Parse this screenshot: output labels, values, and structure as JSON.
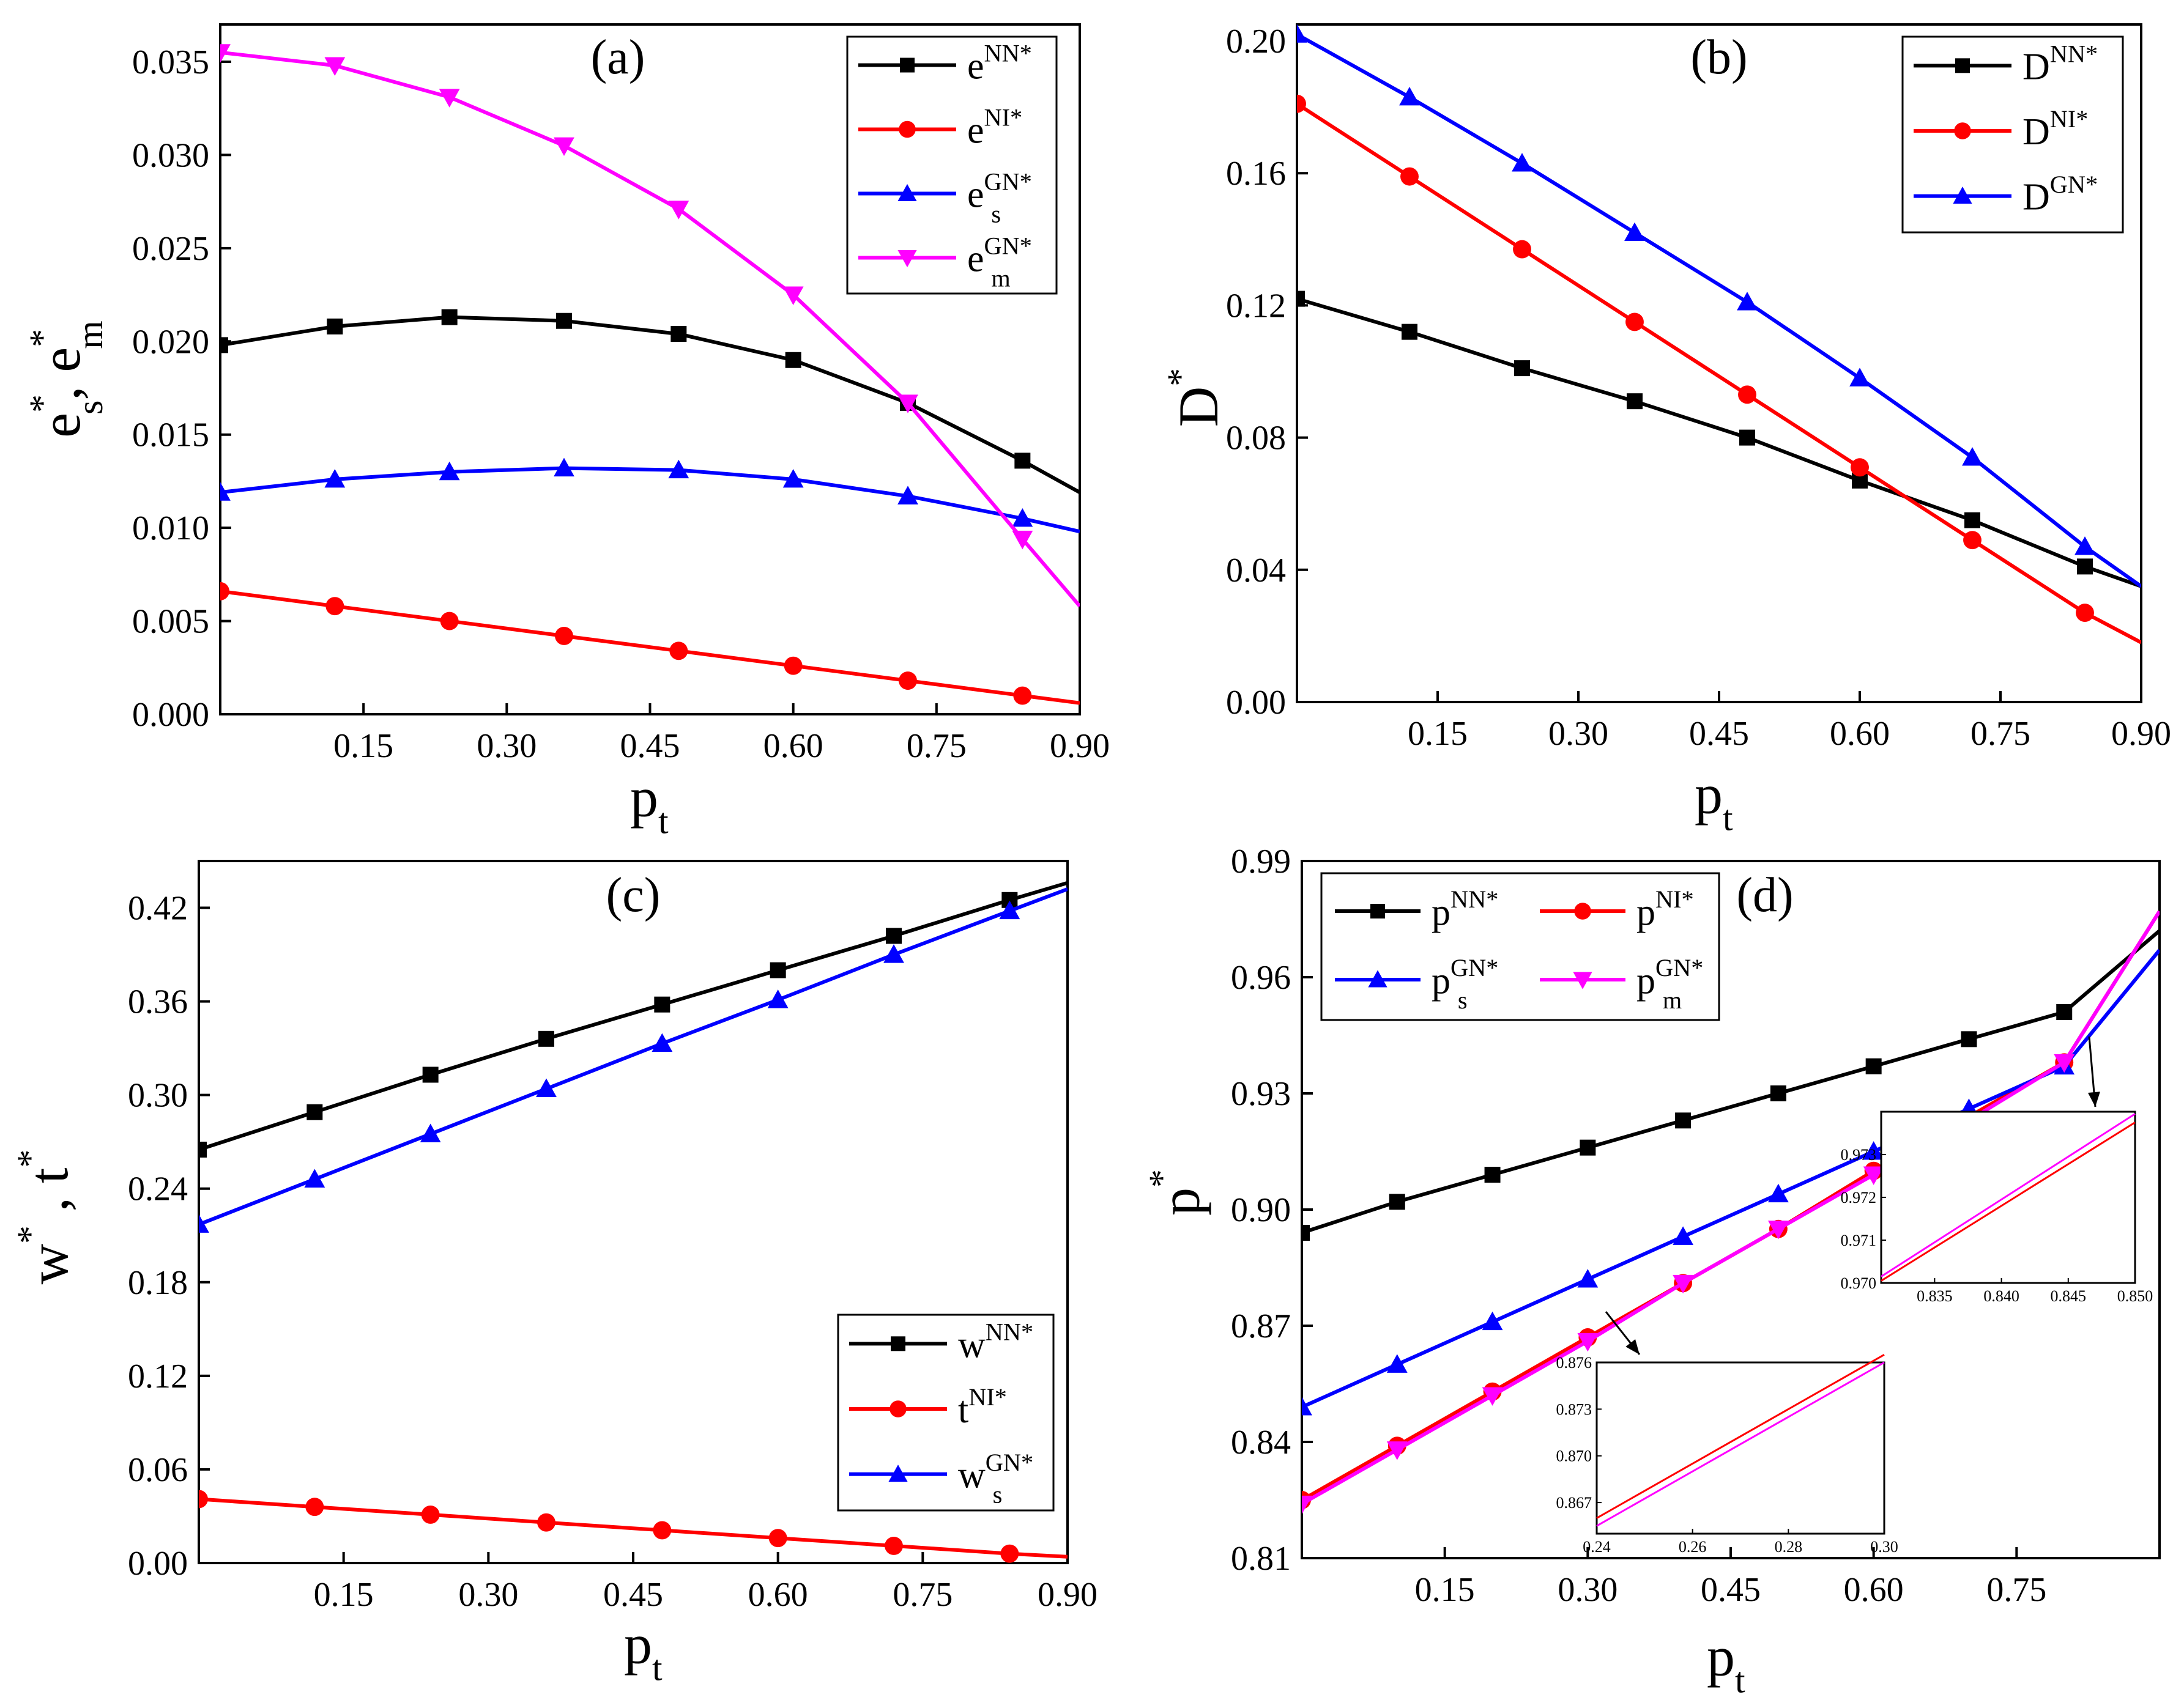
{
  "chart_data": [
    {
      "id": "a",
      "type": "line",
      "panel_label": "(a)",
      "xlabel": {
        "base": "p",
        "sub": "t"
      },
      "ylabel": [
        {
          "base": "e",
          "sup": "*",
          "sub": "s"
        },
        {
          "text": ", "
        },
        {
          "base": "e",
          "sup": "*",
          "sub": "m"
        }
      ],
      "xlim": [
        0,
        0.9
      ],
      "ylim": [
        0,
        0.037
      ],
      "xticks": [
        0.15,
        0.3,
        0.45,
        0.6,
        0.75,
        0.9
      ],
      "xtick_labels": [
        "0.15",
        "0.30",
        "0.45",
        "0.60",
        "0.75",
        "0.90"
      ],
      "yticks": [
        0.0,
        0.005,
        0.01,
        0.015,
        0.02,
        0.025,
        0.03,
        0.035
      ],
      "ytick_labels": [
        "0.000",
        "0.005",
        "0.010",
        "0.015",
        "0.020",
        "0.025",
        "0.030",
        "0.035"
      ],
      "legend_position": "top-right",
      "series": [
        {
          "legend": {
            "base": "e",
            "sup": "NN*",
            "sub": ""
          },
          "color": "#000000",
          "marker": "square",
          "x": [
            0,
            0.12,
            0.24,
            0.36,
            0.48,
            0.6,
            0.72,
            0.84,
            0.9
          ],
          "y": [
            0.0198,
            0.0208,
            0.0213,
            0.0211,
            0.0204,
            0.019,
            0.0167,
            0.0136,
            0.0119
          ],
          "marker_x": [
            0,
            0.12,
            0.24,
            0.36,
            0.48,
            0.6,
            0.72,
            0.84
          ]
        },
        {
          "legend": {
            "base": "e",
            "sup": "NI*",
            "sub": ""
          },
          "color": "#ff0000",
          "marker": "circle",
          "x": [
            0,
            0.12,
            0.24,
            0.36,
            0.48,
            0.6,
            0.72,
            0.84,
            0.9
          ],
          "y": [
            0.0066,
            0.0058,
            0.005,
            0.0042,
            0.0034,
            0.0026,
            0.0018,
            0.001,
            0.0006
          ],
          "marker_x": [
            0,
            0.12,
            0.24,
            0.36,
            0.48,
            0.6,
            0.72,
            0.84
          ]
        },
        {
          "legend": {
            "base": "e",
            "sup": "GN*",
            "sub": "s"
          },
          "color": "#0000ff",
          "marker": "triangle-up",
          "x": [
            0,
            0.12,
            0.24,
            0.36,
            0.48,
            0.6,
            0.72,
            0.84,
            0.9
          ],
          "y": [
            0.0119,
            0.0126,
            0.013,
            0.0132,
            0.0131,
            0.0126,
            0.0117,
            0.0105,
            0.0098
          ],
          "marker_x": [
            0,
            0.12,
            0.24,
            0.36,
            0.48,
            0.6,
            0.72,
            0.84
          ]
        },
        {
          "legend": {
            "base": "e",
            "sup": "GN*",
            "sub": "m"
          },
          "color": "#ff00ff",
          "marker": "triangle-down",
          "x": [
            0,
            0.12,
            0.24,
            0.36,
            0.48,
            0.6,
            0.72,
            0.84,
            0.9
          ],
          "y": [
            0.0355,
            0.0348,
            0.0331,
            0.0305,
            0.0271,
            0.0225,
            0.0167,
            0.0094,
            0.0058
          ],
          "marker_x": [
            0,
            0.12,
            0.24,
            0.36,
            0.48,
            0.6,
            0.72,
            0.84
          ]
        }
      ]
    },
    {
      "id": "b",
      "type": "line",
      "panel_label": "(b)",
      "xlabel": {
        "base": "p",
        "sub": "t"
      },
      "ylabel": [
        {
          "base": "D",
          "sup": "*",
          "sub": ""
        }
      ],
      "xlim": [
        0,
        0.9
      ],
      "ylim": [
        0,
        0.205
      ],
      "xticks": [
        0.15,
        0.3,
        0.45,
        0.6,
        0.75,
        0.9
      ],
      "xtick_labels": [
        "0.15",
        "0.30",
        "0.45",
        "0.60",
        "0.75",
        "0.90"
      ],
      "yticks": [
        0.0,
        0.04,
        0.08,
        0.12,
        0.16,
        0.2
      ],
      "ytick_labels": [
        "0.00",
        "0.04",
        "0.08",
        "0.12",
        "0.16",
        "0.20"
      ],
      "legend_position": "top-right",
      "series": [
        {
          "legend": {
            "base": "D",
            "sup": "NN*",
            "sub": ""
          },
          "color": "#000000",
          "marker": "square",
          "x": [
            0,
            0.12,
            0.24,
            0.36,
            0.48,
            0.6,
            0.72,
            0.84,
            0.9
          ],
          "y": [
            0.122,
            0.112,
            0.101,
            0.091,
            0.08,
            0.067,
            0.055,
            0.041,
            0.035
          ],
          "marker_x": [
            0,
            0.12,
            0.24,
            0.36,
            0.48,
            0.6,
            0.72,
            0.84
          ]
        },
        {
          "legend": {
            "base": "D",
            "sup": "NI*",
            "sub": ""
          },
          "color": "#ff0000",
          "marker": "circle",
          "x": [
            0,
            0.12,
            0.24,
            0.36,
            0.48,
            0.6,
            0.72,
            0.84,
            0.9
          ],
          "y": [
            0.181,
            0.159,
            0.137,
            0.115,
            0.093,
            0.071,
            0.049,
            0.027,
            0.018
          ],
          "marker_x": [
            0,
            0.12,
            0.24,
            0.36,
            0.48,
            0.6,
            0.72,
            0.84
          ]
        },
        {
          "legend": {
            "base": "D",
            "sup": "GN*",
            "sub": ""
          },
          "color": "#0000ff",
          "marker": "triangle-up",
          "x": [
            0,
            0.12,
            0.24,
            0.36,
            0.48,
            0.6,
            0.72,
            0.84,
            0.9
          ],
          "y": [
            0.202,
            0.183,
            0.163,
            0.142,
            0.121,
            0.098,
            0.074,
            0.047,
            0.035
          ],
          "marker_x": [
            0,
            0.12,
            0.24,
            0.36,
            0.48,
            0.6,
            0.72,
            0.84
          ]
        }
      ]
    },
    {
      "id": "c",
      "type": "line",
      "panel_label": "(c)",
      "xlabel": {
        "base": "p",
        "sub": "t"
      },
      "ylabel": [
        {
          "base": "w",
          "sup": "*",
          "sub": ""
        },
        {
          "text": " , "
        },
        {
          "base": "t",
          "sup": "*",
          "sub": ""
        }
      ],
      "xlim": [
        0,
        0.9
      ],
      "ylim": [
        0,
        0.45
      ],
      "xticks": [
        0.15,
        0.3,
        0.45,
        0.6,
        0.75,
        0.9
      ],
      "xtick_labels": [
        "0.15",
        "0.30",
        "0.45",
        "0.60",
        "0.75",
        "0.90"
      ],
      "yticks": [
        0.0,
        0.06,
        0.12,
        0.18,
        0.24,
        0.3,
        0.36,
        0.42
      ],
      "ytick_labels": [
        "0.00",
        "0.06",
        "0.12",
        "0.18",
        "0.24",
        "0.30",
        "0.36",
        "0.42"
      ],
      "legend_position": "bottom-right",
      "series": [
        {
          "legend": {
            "base": "w",
            "sup": "NN*",
            "sub": ""
          },
          "color": "#000000",
          "marker": "square",
          "x": [
            0,
            0.12,
            0.24,
            0.36,
            0.48,
            0.6,
            0.72,
            0.84,
            0.9
          ],
          "y": [
            0.265,
            0.289,
            0.313,
            0.336,
            0.358,
            0.38,
            0.402,
            0.425,
            0.436
          ],
          "marker_x": [
            0,
            0.12,
            0.24,
            0.36,
            0.48,
            0.6,
            0.72,
            0.84
          ]
        },
        {
          "legend": {
            "base": "t",
            "sup": "NI*",
            "sub": ""
          },
          "color": "#ff0000",
          "marker": "circle",
          "x": [
            0,
            0.12,
            0.24,
            0.36,
            0.48,
            0.6,
            0.72,
            0.84,
            0.9
          ],
          "y": [
            0.041,
            0.036,
            0.031,
            0.026,
            0.021,
            0.016,
            0.011,
            0.006,
            0.004
          ],
          "marker_x": [
            0,
            0.12,
            0.24,
            0.36,
            0.48,
            0.6,
            0.72,
            0.84
          ]
        },
        {
          "legend": {
            "base": "w",
            "sup": "GN*",
            "sub": "s"
          },
          "color": "#0000ff",
          "marker": "triangle-up",
          "x": [
            0,
            0.12,
            0.24,
            0.36,
            0.48,
            0.6,
            0.72,
            0.84,
            0.9
          ],
          "y": [
            0.217,
            0.246,
            0.275,
            0.304,
            0.333,
            0.361,
            0.39,
            0.418,
            0.432
          ],
          "marker_x": [
            0,
            0.12,
            0.24,
            0.36,
            0.48,
            0.6,
            0.72,
            0.84
          ]
        }
      ]
    },
    {
      "id": "d",
      "type": "line",
      "panel_label": "(d)",
      "xlabel": {
        "base": "p",
        "sub": "t"
      },
      "ylabel": [
        {
          "base": "p",
          "sup": "*",
          "sub": ""
        }
      ],
      "xlim": [
        0,
        0.9
      ],
      "ylim": [
        0.81,
        0.99
      ],
      "xticks": [
        0.15,
        0.3,
        0.45,
        0.6,
        0.75
      ],
      "xtick_labels": [
        "0.15",
        "0.30",
        "0.45",
        "0.60",
        "0.75"
      ],
      "yticks": [
        0.81,
        0.84,
        0.87,
        0.9,
        0.93,
        0.96,
        0.99
      ],
      "ytick_labels": [
        "0.81",
        "0.84",
        "0.87",
        "0.90",
        "0.93",
        "0.96",
        "0.99"
      ],
      "legend_position": "top-left",
      "series": [
        {
          "legend": {
            "base": "p",
            "sup": "NN*",
            "sub": ""
          },
          "color": "#000000",
          "marker": "square",
          "x": [
            0,
            0.1,
            0.2,
            0.3,
            0.4,
            0.5,
            0.6,
            0.7,
            0.8,
            0.9
          ],
          "y": [
            0.894,
            0.902,
            0.909,
            0.916,
            0.923,
            0.93,
            0.937,
            0.944,
            0.951,
            0.972
          ],
          "marker_x": [
            0,
            0.1,
            0.2,
            0.3,
            0.4,
            0.5,
            0.6,
            0.7,
            0.8
          ]
        },
        {
          "legend": {
            "base": "p",
            "sup": "NI*",
            "sub": ""
          },
          "color": "#ff0000",
          "marker": "circle",
          "x": [
            0,
            0.1,
            0.2,
            0.3,
            0.4,
            0.5,
            0.6,
            0.7,
            0.8,
            0.9
          ],
          "y": [
            0.825,
            0.839,
            0.853,
            0.867,
            0.881,
            0.895,
            0.91,
            0.924,
            0.938,
            0.977
          ],
          "marker_x": [
            0,
            0.1,
            0.2,
            0.3,
            0.4,
            0.5,
            0.6,
            0.7,
            0.8
          ]
        },
        {
          "legend": {
            "base": "p",
            "sup": "GN*",
            "sub": "s"
          },
          "color": "#0000ff",
          "marker": "triangle-up",
          "x": [
            0,
            0.1,
            0.2,
            0.3,
            0.4,
            0.5,
            0.6,
            0.7,
            0.8,
            0.9
          ],
          "y": [
            0.849,
            0.86,
            0.871,
            0.882,
            0.893,
            0.904,
            0.915,
            0.926,
            0.937,
            0.967
          ],
          "marker_x": [
            0,
            0.1,
            0.2,
            0.3,
            0.4,
            0.5,
            0.6,
            0.7,
            0.8
          ]
        },
        {
          "legend": {
            "base": "p",
            "sup": "GN*",
            "sub": "m"
          },
          "color": "#ff00ff",
          "marker": "triangle-down",
          "x": [
            0,
            0.1,
            0.2,
            0.3,
            0.4,
            0.5,
            0.6,
            0.7,
            0.8,
            0.9
          ],
          "y": [
            0.824,
            0.838,
            0.852,
            0.866,
            0.881,
            0.895,
            0.909,
            0.923,
            0.938,
            0.977
          ],
          "marker_x": [
            0,
            0.1,
            0.2,
            0.3,
            0.4,
            0.5,
            0.6,
            0.7,
            0.8
          ]
        }
      ],
      "insets": [
        {
          "id": "d-inset-upper",
          "points_to": "upper-right segment of curves",
          "xlim": [
            0.831,
            0.85
          ],
          "ylim": [
            0.97,
            0.974
          ],
          "xticks": [
            0.835,
            0.84,
            0.845,
            0.85
          ],
          "xtick_labels": [
            "0.835",
            "0.840",
            "0.845",
            "0.850"
          ],
          "yticks": [
            0.97,
            0.971,
            0.972,
            0.973
          ],
          "ytick_labels": [
            "0.970",
            "0.971",
            "0.972",
            "0.973"
          ],
          "series": [
            {
              "color": "#ff0000",
              "x": [
                0.831,
                0.85
              ],
              "y": [
                0.97005,
                0.97375
              ]
            },
            {
              "color": "#ff00ff",
              "x": [
                0.831,
                0.85
              ],
              "y": [
                0.97015,
                0.97395
              ]
            }
          ]
        },
        {
          "id": "d-inset-lower",
          "points_to": "lower-left segment of curves",
          "xlim": [
            0.24,
            0.3
          ],
          "ylim": [
            0.865,
            0.876
          ],
          "xticks": [
            0.24,
            0.26,
            0.28,
            0.3
          ],
          "xtick_labels": [
            "0.24",
            "0.26",
            "0.28",
            "0.30"
          ],
          "yticks": [
            0.867,
            0.87,
            0.873,
            0.876
          ],
          "ytick_labels": [
            "0.867",
            "0.870",
            "0.873",
            "0.876"
          ],
          "series": [
            {
              "color": "#ff0000",
              "x": [
                0.24,
                0.3
              ],
              "y": [
                0.866,
                0.8765
              ]
            },
            {
              "color": "#ff00ff",
              "x": [
                0.24,
                0.3
              ],
              "y": [
                0.8655,
                0.876
              ]
            }
          ]
        }
      ]
    }
  ]
}
